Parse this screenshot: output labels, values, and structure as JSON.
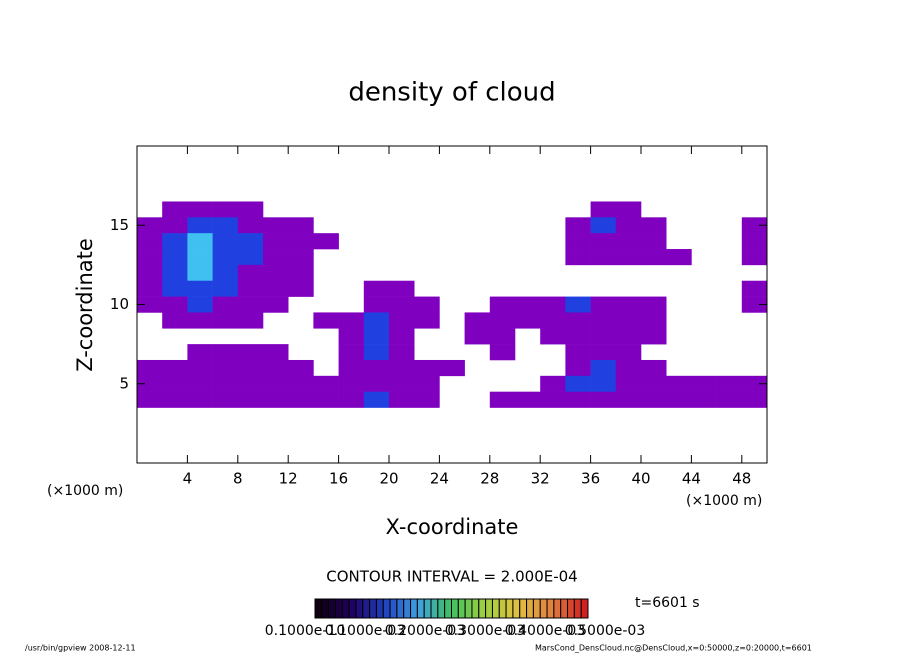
{
  "chart_data": {
    "type": "contour",
    "title": "density of cloud",
    "x_label": "X-coordinate",
    "y_label": "Z-coordinate",
    "x_unit_left": "(×1000 m)",
    "x_unit_right": "(×1000 m)",
    "contour_interval": "CONTOUR INTERVAL = 2.000E-04",
    "time_label": "t=6601 s",
    "footer_left": "/usr/bin/gpview  2008-12-11",
    "footer_right": "MarsCond_DensCloud.nc@DensCloud,x=0:50000,z=0:20000,t=6601",
    "xlim": [
      0,
      50
    ],
    "ylim": [
      0,
      20
    ],
    "xticks": [
      4,
      8,
      12,
      16,
      20,
      24,
      28,
      32,
      36,
      40,
      44,
      48
    ],
    "yticks": [
      5,
      10,
      15
    ],
    "x": [
      1,
      3,
      5,
      7,
      9,
      11,
      13,
      15,
      17,
      19,
      21,
      23,
      25,
      27,
      29,
      31,
      33,
      35,
      37,
      39,
      41,
      43,
      45,
      47,
      49
    ],
    "z": [
      16,
      15,
      14,
      13,
      12,
      11,
      10,
      9,
      8,
      7,
      6,
      5,
      4
    ],
    "levels": [
      0.0001,
      0.0002,
      0.0003
    ],
    "colors": [
      "#8000c0",
      "#2040e0",
      "#40c0f0"
    ],
    "field": [
      [
        0,
        0.0001,
        0.0001,
        0.0001,
        0.0001,
        0,
        0,
        0,
        0,
        0,
        0,
        0,
        0,
        0,
        0,
        0,
        0,
        0,
        0.0001,
        0.0001,
        0,
        0,
        0,
        0,
        0
      ],
      [
        0.0001,
        0.0001,
        0.0002,
        0.0002,
        0.0001,
        0.0001,
        0.0001,
        0,
        0,
        0,
        0,
        0,
        0,
        0,
        0,
        0,
        0,
        0.0001,
        0.0002,
        0.0001,
        0.0001,
        0,
        0,
        0,
        0.0001
      ],
      [
        0.0001,
        0.0002,
        0.0003,
        0.0002,
        0.0002,
        0.0001,
        0.0001,
        0.0001,
        0,
        0,
        0,
        0,
        0,
        0,
        0,
        0,
        0,
        0.0001,
        0.0001,
        0.0001,
        0.0001,
        0,
        0,
        0,
        0.0001
      ],
      [
        0.0001,
        0.0002,
        0.0003,
        0.0002,
        0.0002,
        0.0001,
        0.0001,
        0,
        0,
        0,
        0,
        0,
        0,
        0,
        0,
        0,
        0,
        0.0001,
        0.0001,
        0.0001,
        0.0001,
        0.0001,
        0,
        0,
        0.0001
      ],
      [
        0.0001,
        0.0002,
        0.0003,
        0.0002,
        0.0001,
        0.0001,
        0.0001,
        0,
        0,
        0,
        0,
        0,
        0,
        0,
        0,
        0,
        0,
        0,
        0,
        0,
        0,
        0,
        0,
        0,
        0
      ],
      [
        0.0001,
        0.0002,
        0.0002,
        0.0002,
        0.0001,
        0.0001,
        0.0001,
        0,
        0,
        0.0001,
        0.0001,
        0,
        0,
        0,
        0,
        0,
        0,
        0,
        0,
        0,
        0,
        0,
        0,
        0,
        0.0001
      ],
      [
        0.0001,
        0.0001,
        0.0002,
        0.0001,
        0.0001,
        0.0001,
        0,
        0,
        0,
        0.0001,
        0.0001,
        0.0001,
        0,
        0,
        0.0001,
        0.0001,
        0.0001,
        0.0002,
        0.0001,
        0.0001,
        0.0001,
        0,
        0,
        0,
        0.0001
      ],
      [
        0,
        0.0001,
        0.0001,
        0.0001,
        0.0001,
        0,
        0,
        0.0001,
        0.0001,
        0.0002,
        0.0001,
        0.0001,
        0,
        0.0001,
        0.0001,
        0.0001,
        0.0001,
        0.0001,
        0.0001,
        0.0001,
        0.0001,
        0,
        0,
        0,
        0
      ],
      [
        0,
        0,
        0,
        0,
        0,
        0,
        0,
        0,
        0.0001,
        0.0002,
        0.0001,
        0,
        0,
        0.0001,
        0.0001,
        0,
        0.0001,
        0.0001,
        0.0001,
        0.0001,
        0.0001,
        0,
        0,
        0,
        0
      ],
      [
        0,
        0,
        0.0001,
        0.0001,
        0.0001,
        0.0001,
        0,
        0,
        0.0001,
        0.0002,
        0.0001,
        0,
        0,
        0,
        0.0001,
        0,
        0,
        0.0001,
        0.0001,
        0.0001,
        0,
        0,
        0,
        0,
        0
      ],
      [
        0.0001,
        0.0001,
        0.0001,
        0.0001,
        0.0001,
        0.0001,
        0.0001,
        0,
        0.0001,
        0.0001,
        0.0001,
        0.0001,
        0.0001,
        0,
        0,
        0,
        0,
        0.0001,
        0.0002,
        0.0001,
        0.0001,
        0,
        0,
        0,
        0
      ],
      [
        0.0001,
        0.0001,
        0.0001,
        0.0001,
        0.0001,
        0.0001,
        0.0001,
        0.0001,
        0.0001,
        0.0001,
        0.0001,
        0.0001,
        0,
        0,
        0,
        0,
        0.0001,
        0.0002,
        0.0002,
        0.0001,
        0.0001,
        0.0001,
        0.0001,
        0.0001,
        0.0001
      ],
      [
        0.0001,
        0.0001,
        0.0001,
        0.0001,
        0.0001,
        0.0001,
        0.0001,
        0.0001,
        0.0001,
        0.0002,
        0.0001,
        0.0001,
        0,
        0,
        0.0001,
        0.0001,
        0.0001,
        0.0001,
        0.0001,
        0.0001,
        0.0001,
        0.0001,
        0.0001,
        0.0001,
        0.0001
      ]
    ],
    "colorbar": {
      "colors": [
        "#100010",
        "#200060",
        "#2040c0",
        "#40a0e0",
        "#40c060",
        "#a0d040",
        "#e0c040",
        "#e08040",
        "#d02020"
      ],
      "lim": [
        0,
        0.0005
      ],
      "ticks": [
        {
          "value": 1e-11,
          "label": "0.1000e-10"
        },
        {
          "value": 0.0001,
          "label": "0.1000e-03"
        },
        {
          "value": 0.0002,
          "label": "0.2000e-03"
        },
        {
          "value": 0.0003,
          "label": "0.3000e-03"
        },
        {
          "value": 0.0004,
          "label": "0.4000e-03"
        },
        {
          "value": 0.0005,
          "label": "0.5000e-03"
        }
      ]
    }
  }
}
